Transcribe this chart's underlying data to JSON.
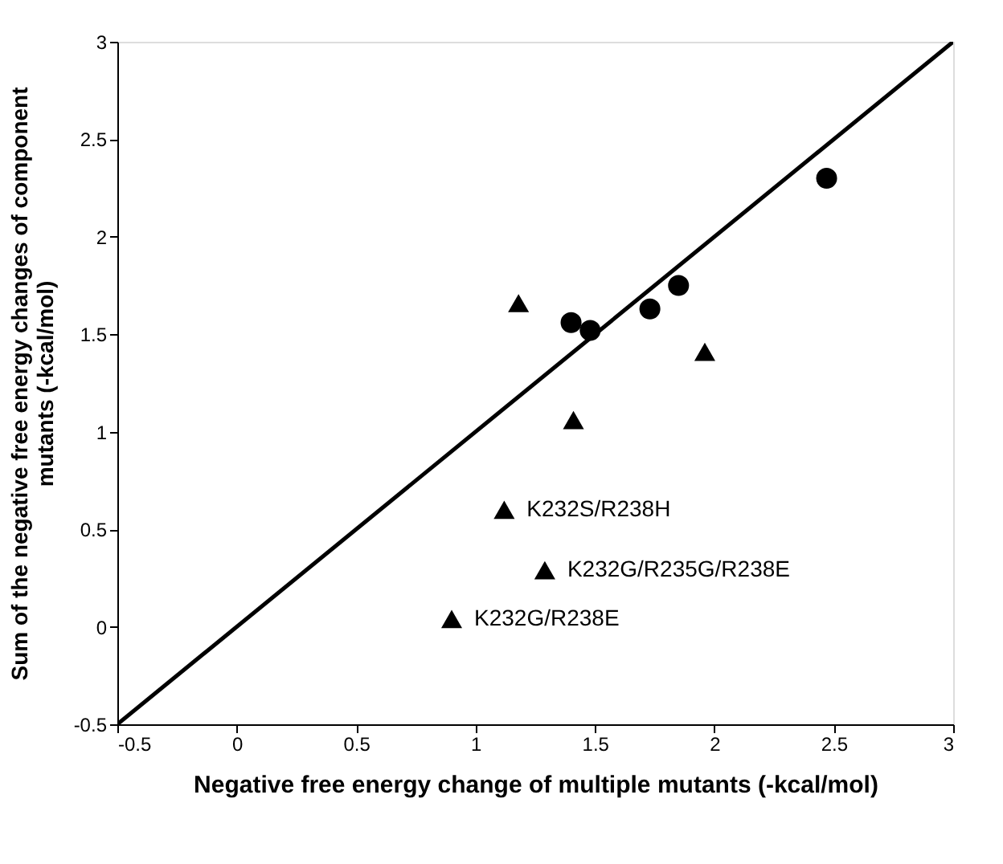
{
  "chart_data": {
    "type": "scatter",
    "xlabel": "Negative free energy change of multiple mutants (-kcal/mol)",
    "ylabel": "Sum of the negative free energy changes of component\nmutants (-kcal/mol)",
    "xlim": [
      -0.5,
      3
    ],
    "ylim": [
      -0.5,
      3
    ],
    "xticks": [
      -0.5,
      0,
      0.5,
      1,
      1.5,
      2,
      2.5,
      3
    ],
    "yticks": [
      -0.5,
      0,
      0.5,
      1,
      1.5,
      2,
      2.5,
      3
    ],
    "grid": false,
    "series": [
      {
        "marker": "circle",
        "color": "#000000",
        "x": [
          1.4,
          1.48,
          1.73,
          1.85,
          2.47
        ],
        "values": [
          1.56,
          1.52,
          1.63,
          1.75,
          2.3
        ]
      },
      {
        "marker": "triangle",
        "color": "#000000",
        "x": [
          1.18,
          1.96,
          1.41,
          1.12,
          1.29,
          0.9
        ],
        "values": [
          1.66,
          1.41,
          1.06,
          0.6,
          0.29,
          0.04
        ]
      },
      {
        "type": "line",
        "line_style": "solid",
        "color": "#000000",
        "x": [
          -0.5,
          3
        ],
        "values": [
          -0.5,
          3
        ]
      }
    ],
    "annotations": [
      {
        "text": "K232S/R238H",
        "x": 1.12,
        "y": 0.6
      },
      {
        "text": "K232G/R235G/R238E",
        "x": 1.29,
        "y": 0.29
      },
      {
        "text": "K232G/R238E",
        "x": 0.9,
        "y": 0.04
      }
    ]
  }
}
